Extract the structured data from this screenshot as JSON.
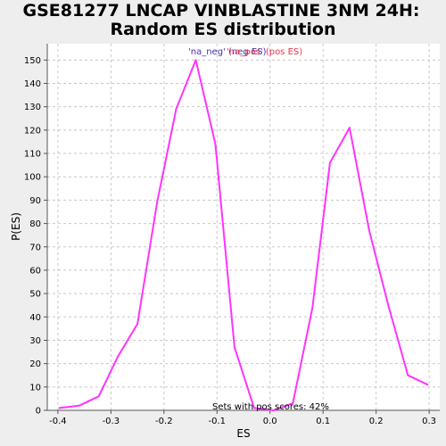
{
  "chart_data": {
    "type": "line",
    "title": "GSE81277 LNCAP VINBLASTINE 3NM 24H:",
    "subtitle": "Random ES distribution",
    "xlabel": "ES",
    "ylabel": "P(ES)",
    "xlim": [
      -0.42,
      0.32
    ],
    "ylim": [
      0,
      157
    ],
    "x_ticks": [
      "-0.4",
      "-0.3",
      "-0.2",
      "-0.1",
      "0.0",
      "0.1",
      "0.2",
      "0.3"
    ],
    "x_tick_values": [
      -0.4,
      -0.3,
      -0.2,
      -0.1,
      0.0,
      0.1,
      0.2,
      0.3
    ],
    "y_ticks": [
      "0",
      "10",
      "20",
      "30",
      "40",
      "50",
      "60",
      "70",
      "80",
      "90",
      "100",
      "110",
      "120",
      "130",
      "140",
      "150"
    ],
    "y_tick_values": [
      0,
      10,
      20,
      30,
      40,
      50,
      60,
      70,
      80,
      90,
      100,
      110,
      120,
      130,
      140,
      150
    ],
    "grid": true,
    "legend": {
      "placement": "top-center",
      "entries": [
        {
          "label": "'na_neg' (neg ES)",
          "color": "#4b2fb0"
        },
        {
          "label": "'na_pos' (pos ES)",
          "color": "#e8334a"
        }
      ]
    },
    "annotation": "Sets with pos scores: 42%",
    "series": [
      {
        "color": "#ff33ff",
        "x": [
          -0.397,
          -0.36,
          -0.323,
          -0.287,
          -0.25,
          -0.213,
          -0.177,
          -0.14,
          -0.103,
          -0.067,
          -0.03,
          0.007,
          0.043,
          0.08,
          0.113,
          0.15,
          0.187,
          0.223,
          0.26,
          0.297
        ],
        "y": [
          1,
          2,
          6,
          23,
          37,
          89,
          129,
          150,
          114,
          27,
          1,
          0,
          3,
          44,
          106,
          121,
          77,
          45,
          15,
          11
        ]
      }
    ]
  }
}
